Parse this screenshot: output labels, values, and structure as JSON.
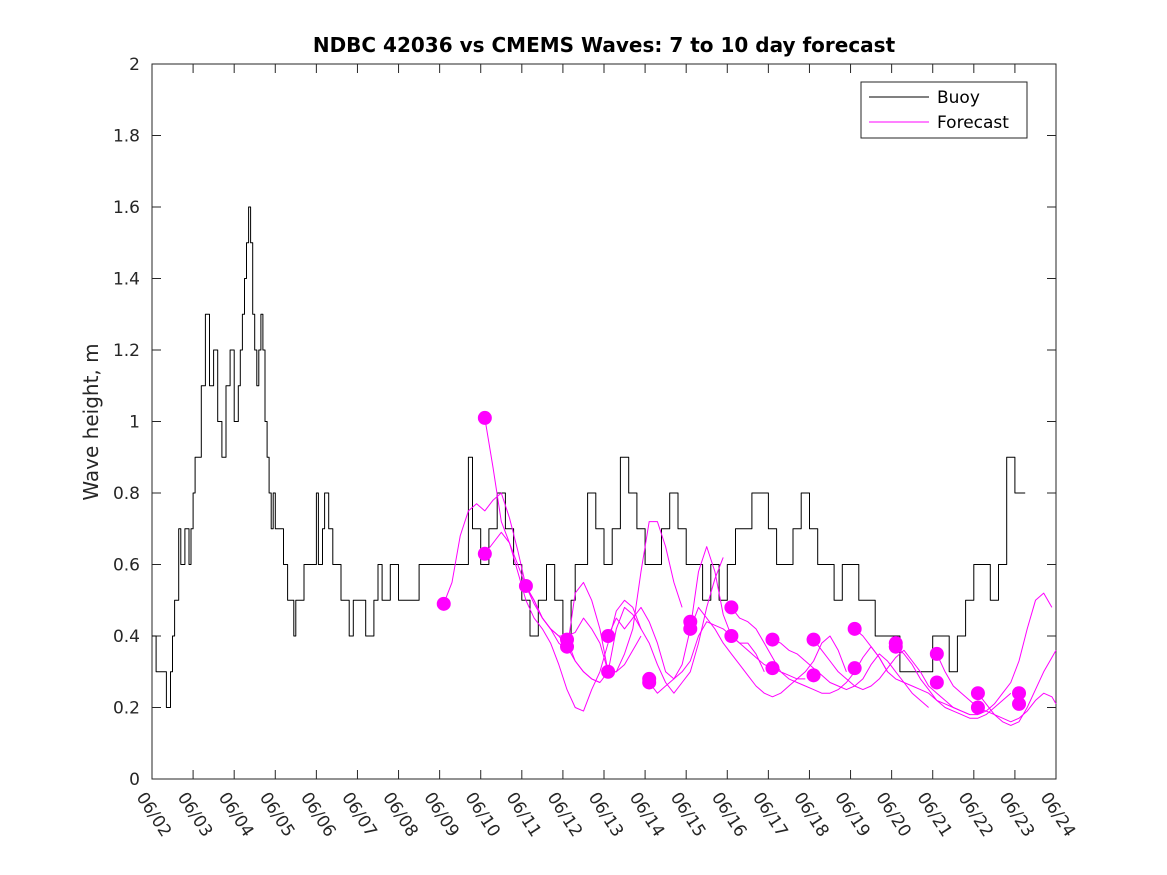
{
  "chart_data": {
    "type": "line",
    "title": "NDBC 42036 vs CMEMS Waves: 7 to 10 day forecast",
    "xlabel": "",
    "ylabel": "Wave height, m",
    "ylim": [
      0,
      2
    ],
    "yticks": [
      "0",
      "0.2",
      "0.4",
      "0.6",
      "0.8",
      "1",
      "1.2",
      "1.4",
      "1.6",
      "1.8",
      "2"
    ],
    "xlim": [
      "06/02",
      "06/24"
    ],
    "xticks": [
      "06/02",
      "06/03",
      "06/04",
      "06/05",
      "06/06",
      "06/07",
      "06/08",
      "06/09",
      "06/10",
      "06/11",
      "06/12",
      "06/13",
      "06/14",
      "06/15",
      "06/16",
      "06/17",
      "06/18",
      "06/19",
      "06/20",
      "06/21",
      "06/22",
      "06/23",
      "06/24"
    ],
    "grid": false,
    "legend": {
      "placement": "top-right",
      "entries": [
        "Buoy",
        "Forecast"
      ]
    },
    "colors": {
      "buoy": "#000000",
      "forecast": "#ff00ff"
    },
    "series": [
      {
        "name": "Buoy",
        "x_days": [
          0.0,
          0.1,
          0.3,
          0.35,
          0.45,
          0.5,
          0.55,
          0.65,
          0.7,
          0.8,
          0.9,
          0.95,
          1.0,
          1.05,
          1.2,
          1.3,
          1.4,
          1.5,
          1.6,
          1.7,
          1.8,
          1.9,
          2.0,
          2.1,
          2.15,
          2.2,
          2.25,
          2.3,
          2.35,
          2.4,
          2.45,
          2.5,
          2.55,
          2.6,
          2.65,
          2.7,
          2.75,
          2.8,
          2.85,
          2.9,
          2.95,
          3.0,
          3.1,
          3.2,
          3.3,
          3.4,
          3.45,
          3.5,
          3.55,
          3.6,
          3.65,
          3.7,
          3.8,
          3.9,
          4.0,
          4.05,
          4.1,
          4.15,
          4.2,
          4.3,
          4.4,
          4.5,
          4.6,
          4.7,
          4.8,
          4.9,
          5.0,
          5.2,
          5.4,
          5.5,
          5.6,
          5.8,
          6.0,
          6.5,
          7.0,
          7.5,
          7.7,
          7.8,
          8.0,
          8.2,
          8.4,
          8.6,
          8.8,
          9.0,
          9.2,
          9.4,
          9.6,
          9.8,
          10.0,
          10.2,
          10.3,
          10.4,
          10.6,
          10.8,
          11.0,
          11.2,
          11.4,
          11.6,
          11.8,
          12.0,
          12.2,
          12.4,
          12.6,
          12.8,
          13.0,
          13.2,
          13.4,
          13.6,
          13.8,
          14.0,
          14.2,
          14.4,
          14.6,
          14.8,
          15.0,
          15.2,
          15.4,
          15.6,
          15.8,
          16.0,
          16.2,
          16.4,
          16.6,
          16.8,
          17.0,
          17.2,
          17.4,
          17.6,
          17.8,
          18.0,
          18.2,
          18.4,
          18.6,
          18.8,
          19.0,
          19.2,
          19.4,
          19.6,
          19.8,
          20.0,
          20.2,
          20.4,
          20.6,
          20.8,
          21.0,
          21.1,
          21.2,
          21.25
        ],
        "values": [
          0.4,
          0.3,
          0.3,
          0.2,
          0.3,
          0.4,
          0.5,
          0.7,
          0.6,
          0.7,
          0.6,
          0.7,
          0.8,
          0.9,
          1.1,
          1.3,
          1.1,
          1.2,
          1.0,
          0.9,
          1.1,
          1.2,
          1.0,
          1.1,
          1.2,
          1.3,
          1.4,
          1.5,
          1.6,
          1.5,
          1.3,
          1.2,
          1.1,
          1.2,
          1.3,
          1.2,
          1.0,
          0.9,
          0.8,
          0.7,
          0.8,
          0.7,
          0.7,
          0.6,
          0.5,
          0.5,
          0.4,
          0.5,
          0.5,
          0.5,
          0.5,
          0.6,
          0.6,
          0.6,
          0.8,
          0.6,
          0.6,
          0.7,
          0.8,
          0.7,
          0.6,
          0.6,
          0.5,
          0.5,
          0.4,
          0.5,
          0.5,
          0.4,
          0.5,
          0.6,
          0.5,
          0.6,
          0.5,
          0.6,
          0.6,
          0.6,
          0.9,
          0.7,
          0.6,
          0.7,
          0.8,
          0.7,
          0.6,
          0.5,
          0.4,
          0.5,
          0.6,
          0.5,
          0.4,
          0.5,
          0.6,
          0.6,
          0.8,
          0.7,
          0.6,
          0.7,
          0.9,
          0.8,
          0.7,
          0.6,
          0.6,
          0.7,
          0.8,
          0.7,
          0.6,
          0.6,
          0.5,
          0.6,
          0.5,
          0.6,
          0.7,
          0.7,
          0.8,
          0.8,
          0.7,
          0.6,
          0.6,
          0.7,
          0.8,
          0.7,
          0.6,
          0.6,
          0.5,
          0.6,
          0.6,
          0.5,
          0.5,
          0.4,
          0.4,
          0.4,
          0.3,
          0.3,
          0.3,
          0.3,
          0.4,
          0.4,
          0.3,
          0.4,
          0.5,
          0.6,
          0.6,
          0.5,
          0.6,
          0.9,
          0.8,
          0.8,
          0.8,
          0.8
        ]
      },
      {
        "name": "Forecast",
        "x_days": [
          7.1,
          7.3,
          7.5,
          7.7,
          7.9,
          8.1,
          8.3,
          8.5,
          8.7,
          8.9,
          9.1,
          9.3,
          9.5,
          9.7,
          9.9,
          10.1,
          10.3,
          10.5,
          10.7,
          10.9
        ],
        "values": [
          0.49,
          0.55,
          0.68,
          0.75,
          0.77,
          0.75,
          0.78,
          0.8,
          0.73,
          0.64,
          0.54,
          0.5,
          0.45,
          0.42,
          0.4,
          0.37,
          0.33,
          0.3,
          0.28,
          0.27
        ]
      },
      {
        "name": "Forecast",
        "x_days": [
          8.1,
          8.3,
          8.5,
          8.7,
          8.9,
          9.1,
          9.3,
          9.5,
          9.7,
          9.9,
          10.1,
          10.3,
          10.5,
          10.7,
          10.9,
          11.1,
          11.3,
          11.5,
          11.7,
          11.9
        ],
        "values": [
          1.01,
          0.87,
          0.72,
          0.66,
          0.6,
          0.54,
          0.49,
          0.45,
          0.42,
          0.4,
          0.4,
          0.41,
          0.45,
          0.42,
          0.38,
          0.3,
          0.3,
          0.32,
          0.36,
          0.4
        ]
      },
      {
        "name": "Forecast",
        "x_days": [
          8.1,
          8.3,
          8.5,
          8.7,
          8.9,
          9.1,
          9.3,
          9.5,
          9.7,
          9.9,
          10.1,
          10.3,
          10.5,
          10.7,
          10.9,
          11.1,
          11.3,
          11.5,
          11.7,
          11.9
        ],
        "values": [
          0.63,
          0.66,
          0.69,
          0.66,
          0.58,
          0.5,
          0.45,
          0.42,
          0.38,
          0.32,
          0.25,
          0.2,
          0.19,
          0.25,
          0.3,
          0.38,
          0.47,
          0.5,
          0.48,
          0.42
        ]
      },
      {
        "name": "Forecast",
        "x_days": [
          9.1,
          9.3,
          9.5,
          9.7,
          9.9,
          10.1,
          10.3,
          10.5,
          10.7,
          10.9,
          11.1,
          11.3,
          11.5,
          11.7,
          11.9,
          12.1,
          12.3,
          12.5,
          12.7,
          12.9
        ],
        "values": [
          0.54,
          0.5,
          0.45,
          0.42,
          0.38,
          0.36,
          0.52,
          0.55,
          0.5,
          0.42,
          0.3,
          0.3,
          0.35,
          0.42,
          0.58,
          0.72,
          0.72,
          0.65,
          0.55,
          0.48
        ]
      },
      {
        "name": "Forecast",
        "x_days": [
          10.1,
          10.3,
          10.5,
          10.7,
          10.9,
          11.1,
          11.3,
          11.5,
          11.7,
          11.9,
          12.1,
          12.3,
          12.5,
          12.7,
          12.9,
          13.1,
          13.3,
          13.5,
          13.7,
          13.9
        ],
        "values": [
          0.39,
          0.33,
          0.3,
          0.28,
          0.27,
          0.3,
          0.42,
          0.48,
          0.46,
          0.42,
          0.38,
          0.32,
          0.27,
          0.24,
          0.27,
          0.3,
          0.38,
          0.48,
          0.56,
          0.62
        ]
      },
      {
        "name": "Forecast",
        "x_days": [
          11.1,
          11.3,
          11.5,
          11.7,
          11.9,
          12.1,
          12.3,
          12.5,
          12.7,
          12.9,
          13.1,
          13.3,
          13.5,
          13.7,
          13.9,
          14.1,
          14.3,
          14.5,
          14.7,
          14.9
        ],
        "values": [
          0.4,
          0.45,
          0.42,
          0.45,
          0.48,
          0.44,
          0.38,
          0.3,
          0.28,
          0.32,
          0.42,
          0.58,
          0.65,
          0.58,
          0.46,
          0.4,
          0.38,
          0.38,
          0.35,
          0.3
        ]
      },
      {
        "name": "Forecast",
        "x_days": [
          12.1,
          12.3,
          12.5,
          12.7,
          12.9,
          13.1,
          13.3,
          13.5,
          13.7,
          13.9,
          14.1,
          14.3,
          14.5,
          14.7,
          14.9,
          15.1,
          15.3,
          15.5,
          15.7,
          15.9
        ],
        "values": [
          0.27,
          0.24,
          0.26,
          0.28,
          0.3,
          0.33,
          0.4,
          0.44,
          0.43,
          0.42,
          0.4,
          0.38,
          0.36,
          0.34,
          0.32,
          0.31,
          0.3,
          0.29,
          0.28,
          0.28
        ]
      },
      {
        "name": "Forecast",
        "x_days": [
          13.1,
          13.3,
          13.5,
          13.7,
          13.9,
          14.1,
          14.3,
          14.5,
          14.7,
          14.9,
          15.1,
          15.3,
          15.5,
          15.7,
          15.9,
          16.1,
          16.3,
          16.5,
          16.7,
          16.9
        ],
        "values": [
          0.42,
          0.48,
          0.45,
          0.42,
          0.38,
          0.35,
          0.32,
          0.29,
          0.26,
          0.24,
          0.23,
          0.24,
          0.26,
          0.28,
          0.3,
          0.33,
          0.38,
          0.4,
          0.36,
          0.3
        ]
      },
      {
        "name": "Forecast",
        "x_days": [
          14.1,
          14.3,
          14.5,
          14.7,
          14.9,
          15.1,
          15.3,
          15.5,
          15.7,
          15.9,
          16.1,
          16.3,
          16.5,
          16.7,
          16.9,
          17.1,
          17.3,
          17.5,
          17.7,
          17.9
        ],
        "values": [
          0.48,
          0.45,
          0.44,
          0.42,
          0.38,
          0.34,
          0.3,
          0.28,
          0.27,
          0.26,
          0.25,
          0.24,
          0.24,
          0.25,
          0.27,
          0.3,
          0.34,
          0.37,
          0.34,
          0.3
        ]
      },
      {
        "name": "Forecast",
        "x_days": [
          15.1,
          15.3,
          15.5,
          15.7,
          15.9,
          16.1,
          16.3,
          16.5,
          16.7,
          16.9,
          17.1,
          17.3,
          17.5,
          17.7,
          17.9,
          18.1,
          18.3,
          18.5,
          18.7,
          18.9
        ],
        "values": [
          0.39,
          0.38,
          0.36,
          0.35,
          0.33,
          0.31,
          0.29,
          0.27,
          0.26,
          0.25,
          0.26,
          0.28,
          0.32,
          0.35,
          0.33,
          0.3,
          0.27,
          0.24,
          0.22,
          0.2
        ]
      },
      {
        "name": "Forecast",
        "x_days": [
          16.1,
          16.3,
          16.5,
          16.7,
          16.9,
          17.1,
          17.3,
          17.5,
          17.7,
          17.9,
          18.1,
          18.3,
          18.5,
          18.7,
          18.9,
          19.1,
          19.3,
          19.5,
          19.7,
          19.9
        ],
        "values": [
          0.39,
          0.36,
          0.33,
          0.3,
          0.28,
          0.26,
          0.25,
          0.26,
          0.28,
          0.31,
          0.34,
          0.36,
          0.33,
          0.3,
          0.26,
          0.24,
          0.22,
          0.2,
          0.19,
          0.18
        ]
      },
      {
        "name": "Forecast",
        "x_days": [
          17.1,
          17.3,
          17.5,
          17.7,
          17.9,
          18.1,
          18.3,
          18.5,
          18.7,
          18.9,
          19.1,
          19.3,
          19.5,
          19.7,
          19.9,
          20.1,
          20.3,
          20.5,
          20.7,
          20.9
        ],
        "values": [
          0.42,
          0.4,
          0.37,
          0.34,
          0.3,
          0.28,
          0.27,
          0.26,
          0.25,
          0.24,
          0.22,
          0.2,
          0.19,
          0.18,
          0.17,
          0.17,
          0.18,
          0.2,
          0.22,
          0.24
        ]
      },
      {
        "name": "Forecast",
        "x_days": [
          18.1,
          18.3,
          18.5,
          18.7,
          18.9,
          19.1,
          19.3,
          19.5,
          19.7,
          19.9,
          20.1,
          20.3,
          20.5,
          20.7,
          20.9,
          21.1,
          21.3,
          21.5,
          21.7,
          21.9
        ],
        "values": [
          0.37,
          0.35,
          0.32,
          0.28,
          0.25,
          0.22,
          0.21,
          0.2,
          0.19,
          0.18,
          0.18,
          0.19,
          0.21,
          0.24,
          0.27,
          0.33,
          0.42,
          0.5,
          0.52,
          0.48
        ]
      },
      {
        "name": "Forecast",
        "x_days": [
          19.1,
          19.3,
          19.5,
          19.7,
          19.9,
          20.1,
          20.3,
          20.5,
          20.7,
          20.9,
          21.1,
          21.3,
          21.5,
          21.7,
          21.9,
          22.0
        ],
        "values": [
          0.35,
          0.3,
          0.26,
          0.24,
          0.22,
          0.2,
          0.19,
          0.18,
          0.17,
          0.16,
          0.17,
          0.19,
          0.22,
          0.24,
          0.23,
          0.21
        ]
      },
      {
        "name": "Forecast",
        "x_days": [
          20.1,
          20.3,
          20.5,
          20.7,
          20.9,
          21.1,
          21.3,
          21.5,
          21.7,
          21.9,
          22.0
        ],
        "values": [
          0.24,
          0.21,
          0.18,
          0.16,
          0.15,
          0.16,
          0.2,
          0.25,
          0.3,
          0.34,
          0.36
        ]
      }
    ],
    "markers": {
      "x_days": [
        7.1,
        8.1,
        8.1,
        9.1,
        10.1,
        10.1,
        11.1,
        11.1,
        12.1,
        12.1,
        13.1,
        13.1,
        14.1,
        14.1,
        15.1,
        15.1,
        16.1,
        16.1,
        17.1,
        17.1,
        18.1,
        18.1,
        19.1,
        19.1,
        20.1,
        20.1,
        21.1,
        21.1
      ],
      "values": [
        0.49,
        1.01,
        0.63,
        0.54,
        0.39,
        0.37,
        0.4,
        0.3,
        0.28,
        0.27,
        0.44,
        0.42,
        0.48,
        0.4,
        0.39,
        0.31,
        0.39,
        0.29,
        0.42,
        0.31,
        0.38,
        0.37,
        0.35,
        0.27,
        0.24,
        0.2,
        0.24,
        0.21
      ]
    }
  }
}
